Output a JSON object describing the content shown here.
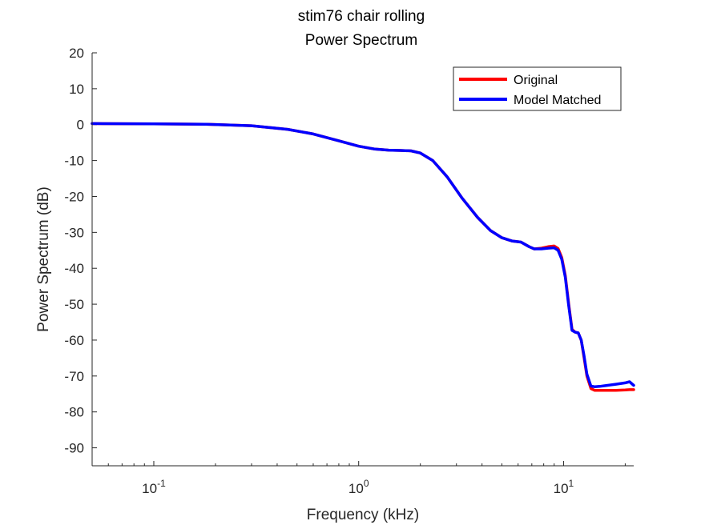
{
  "chart_data": {
    "type": "line",
    "title": "stim76 chair rolling",
    "subtitle": "Power Spectrum",
    "xlabel": "Frequency (kHz)",
    "ylabel": "Power Spectrum (dB)",
    "xscale": "log",
    "xlim": [
      0.05,
      22
    ],
    "ylim": [
      -95,
      20
    ],
    "yticks": [
      20,
      10,
      0,
      -10,
      -20,
      -30,
      -40,
      -50,
      -60,
      -70,
      -80,
      -90
    ],
    "ytick_labels": [
      "20",
      "10",
      "0",
      "-10",
      "-20",
      "-30",
      "-40",
      "-50",
      "-60",
      "-70",
      "-80",
      "-90"
    ],
    "xticks": [
      {
        "value": 0.1,
        "base": "10",
        "exp": "-1"
      },
      {
        "value": 1,
        "base": "10",
        "exp": "0"
      },
      {
        "value": 10,
        "base": "10",
        "exp": "1"
      }
    ],
    "grid": false,
    "legend": "top-right",
    "series": [
      {
        "name": "Original",
        "color": "#ff0000",
        "x": [
          0.05,
          0.1,
          0.18,
          0.3,
          0.45,
          0.6,
          0.8,
          1.0,
          1.2,
          1.4,
          1.6,
          1.8,
          2.0,
          2.3,
          2.7,
          3.2,
          3.8,
          4.4,
          5.0,
          5.6,
          6.2,
          6.8,
          7.2,
          7.8,
          8.4,
          9.0,
          9.4,
          9.8,
          10.2,
          10.6,
          11.0,
          11.4,
          11.8,
          12.2,
          12.6,
          13.0,
          13.6,
          14.2,
          15,
          16,
          18,
          20,
          21,
          22
        ],
        "y": [
          0.3,
          0.2,
          0.1,
          -0.3,
          -1.3,
          -2.6,
          -4.5,
          -6.0,
          -6.8,
          -7.1,
          -7.2,
          -7.3,
          -7.9,
          -10.0,
          -14.5,
          -20.5,
          -25.8,
          -29.5,
          -31.5,
          -32.4,
          -32.7,
          -34.0,
          -34.6,
          -34.4,
          -34.0,
          -33.8,
          -34.5,
          -37.0,
          -42.0,
          -50.0,
          -57.0,
          -57.8,
          -58.0,
          -60.0,
          -65.0,
          -70.0,
          -73.5,
          -74.0,
          -74.0,
          -74.0,
          -74.0,
          -73.9,
          -73.8,
          -73.8
        ]
      },
      {
        "name": "Model Matched",
        "color": "#0000ff",
        "x": [
          0.05,
          0.1,
          0.18,
          0.3,
          0.45,
          0.6,
          0.8,
          1.0,
          1.2,
          1.4,
          1.6,
          1.8,
          2.0,
          2.3,
          2.7,
          3.2,
          3.8,
          4.4,
          5.0,
          5.6,
          6.2,
          6.8,
          7.2,
          7.8,
          8.4,
          9.0,
          9.4,
          9.8,
          10.2,
          10.6,
          11.0,
          11.4,
          11.8,
          12.2,
          12.6,
          13.0,
          13.6,
          14.2,
          15,
          16,
          18,
          20,
          21,
          22
        ],
        "y": [
          0.3,
          0.2,
          0.1,
          -0.3,
          -1.3,
          -2.6,
          -4.5,
          -6.0,
          -6.8,
          -7.1,
          -7.2,
          -7.3,
          -7.9,
          -10.0,
          -14.5,
          -20.5,
          -25.8,
          -29.5,
          -31.5,
          -32.4,
          -32.7,
          -34.0,
          -34.6,
          -34.6,
          -34.4,
          -34.3,
          -35.0,
          -37.5,
          -42.5,
          -50.5,
          -57.3,
          -57.8,
          -58.0,
          -60.0,
          -64.5,
          -69.5,
          -72.8,
          -73.0,
          -72.9,
          -72.7,
          -72.3,
          -71.9,
          -71.6,
          -72.6
        ]
      }
    ]
  }
}
